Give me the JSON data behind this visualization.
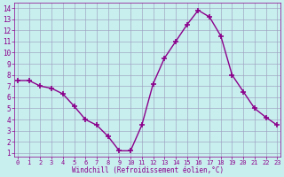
{
  "x": [
    0,
    1,
    2,
    3,
    4,
    5,
    6,
    7,
    8,
    9,
    10,
    11,
    12,
    13,
    14,
    15,
    16,
    17,
    18,
    19,
    20,
    21,
    22,
    23
  ],
  "y": [
    7.5,
    7.5,
    7.0,
    6.8,
    6.3,
    5.2,
    4.0,
    3.5,
    2.5,
    1.2,
    1.2,
    3.5,
    7.2,
    9.5,
    11.0,
    12.5,
    13.8,
    13.2,
    11.5,
    8.0,
    6.5,
    5.0,
    4.2,
    3.5
  ],
  "line_color": "#8b008b",
  "marker": "+",
  "marker_size": 4,
  "marker_linewidth": 1.2,
  "background_color": "#c8eeee",
  "grid_color": "#9999bb",
  "xlabel": "Windchill (Refroidissement éolien,°C)",
  "xlabel_color": "#8b008b",
  "ylabel_values": [
    1,
    2,
    3,
    4,
    5,
    6,
    7,
    8,
    9,
    10,
    11,
    12,
    13,
    14
  ],
  "xlabel_values": [
    0,
    1,
    2,
    3,
    4,
    5,
    6,
    7,
    8,
    9,
    10,
    11,
    12,
    13,
    14,
    15,
    16,
    17,
    18,
    19,
    20,
    21,
    22,
    23
  ],
  "ylim": [
    0.7,
    14.5
  ],
  "xlim": [
    -0.3,
    23.3
  ],
  "tick_color": "#8b008b",
  "tick_label_color": "#8b008b",
  "font_family": "monospace",
  "linewidth": 1.0,
  "ylabel_fontsize": 5.5,
  "xlabel_tick_fontsize": 5.0,
  "xlabel_fontsize": 5.5
}
